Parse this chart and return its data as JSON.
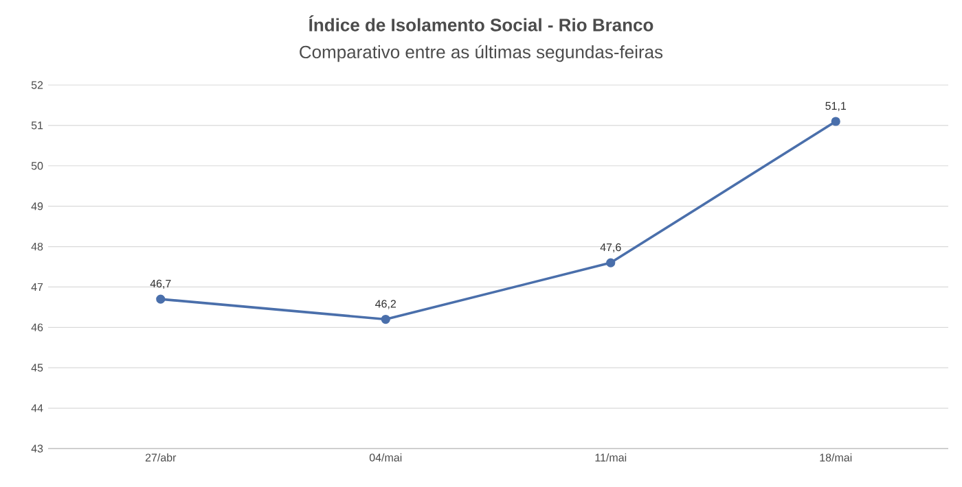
{
  "chart_data": {
    "type": "line",
    "title": "Índice de Isolamento Social - Rio Branco",
    "subtitle": "Comparativo entre as últimas segundas-feiras",
    "categories": [
      "27/abr",
      "04/mai",
      "11/mai",
      "18/mai"
    ],
    "values": [
      46.7,
      46.2,
      47.6,
      51.1
    ],
    "value_labels": [
      "46,7",
      "46,2",
      "47,6",
      "51,1"
    ],
    "color": "#4a6fab",
    "ylim": [
      43,
      52
    ],
    "yticks": [
      43,
      44,
      45,
      46,
      47,
      48,
      49,
      50,
      51,
      52
    ],
    "grid": "y",
    "marker": "circle",
    "line_style": "solid"
  }
}
